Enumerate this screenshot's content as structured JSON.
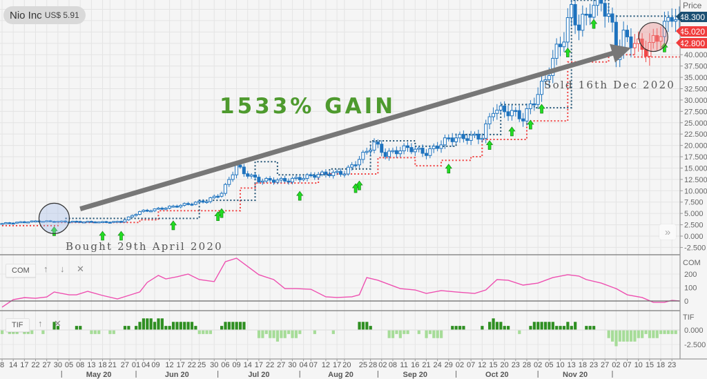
{
  "header": {
    "name": "Nio Inc",
    "price": "US$ 5.91"
  },
  "colors": {
    "candle": "#1e73be",
    "upper_stop": "#1b4f72",
    "lower_stop": "#f03c3c",
    "buy_arrow": "#22dd22",
    "com_line": "#ee4fb0",
    "tif_pos": "#2f8f22",
    "tif_neg": "#a6dc98",
    "gain_text": "#4e9a2e",
    "trend_arrow": "#777777"
  },
  "annotations": {
    "gain": "1533% GAIN",
    "bought": "Bought 29th April 2020",
    "sold": "Sold 16th Dec 2020"
  },
  "price_tags": [
    {
      "value": "48.300",
      "color": "#1b4f72"
    },
    {
      "value": "45.020",
      "color": "#f03c3c"
    },
    {
      "value": "42.800",
      "color": "#f03c3c"
    }
  ],
  "panels": {
    "com": {
      "label": "COM",
      "axis_title": "COM",
      "controls": {
        "up": "↑",
        "down": "↓",
        "close": "✕"
      }
    },
    "tif": {
      "label": "TIF",
      "axis_title": "TIF",
      "controls": {
        "up": "↑",
        "close": "✕"
      }
    }
  },
  "scroll_button": "»",
  "chart_data": {
    "type": "candlestick",
    "title": "Nio Inc",
    "ylabel": "Price",
    "ylim": [
      -2.5,
      52
    ],
    "y_ticks": [
      "-2.500",
      "0.000",
      "2.500",
      "5.000",
      "7.500",
      "10.000",
      "12.500",
      "15.000",
      "17.500",
      "20.000",
      "22.500",
      "25.000",
      "27.500",
      "30.000",
      "32.500",
      "35.000",
      "37.500",
      "40.000"
    ],
    "close_path": [
      [
        0,
        2.8
      ],
      [
        9,
        3.3
      ],
      [
        18,
        3.2
      ],
      [
        27,
        3.1
      ],
      [
        32,
        3.2
      ],
      [
        37,
        5.4
      ],
      [
        42,
        6.0
      ],
      [
        48,
        6.8
      ],
      [
        55,
        7.8
      ],
      [
        59,
        9.5
      ],
      [
        61,
        12.5
      ],
      [
        63,
        15.5
      ],
      [
        65,
        14
      ],
      [
        69,
        12.3
      ],
      [
        77,
        12.3
      ],
      [
        85,
        13.6
      ],
      [
        92,
        14.0
      ],
      [
        96,
        17
      ],
      [
        100,
        20.5
      ],
      [
        103,
        18
      ],
      [
        109,
        19.5
      ],
      [
        114,
        18.3
      ],
      [
        120,
        21.5
      ],
      [
        129,
        22
      ],
      [
        132,
        28
      ],
      [
        137,
        27.3
      ],
      [
        140,
        26
      ],
      [
        143,
        30
      ],
      [
        146,
        34.5
      ],
      [
        149,
        41
      ],
      [
        151,
        44
      ],
      [
        153,
        50
      ],
      [
        155,
        46
      ],
      [
        158,
        50
      ],
      [
        161,
        52
      ],
      [
        164,
        46
      ],
      [
        165,
        40
      ],
      [
        167,
        44
      ],
      [
        170,
        42.5
      ],
      [
        173,
        41
      ],
      [
        176,
        44
      ],
      [
        178,
        46
      ],
      [
        180,
        49
      ],
      [
        182,
        47
      ],
      [
        184,
        46
      ]
    ],
    "upper_stop": [
      [
        17,
        3.9
      ],
      [
        53,
        7.9
      ],
      [
        68,
        16.4
      ],
      [
        74,
        13.5
      ],
      [
        88,
        14.8
      ],
      [
        99,
        21
      ],
      [
        111,
        19.8
      ],
      [
        122,
        22.4
      ],
      [
        134,
        29
      ],
      [
        143,
        28.3
      ],
      [
        153,
        52
      ],
      [
        163,
        48.5
      ],
      [
        184,
        48.5
      ]
    ],
    "lower_stop": [
      [
        0,
        2.3
      ],
      [
        15,
        3
      ],
      [
        37,
        3.6
      ],
      [
        42,
        5.6
      ],
      [
        64,
        10.6
      ],
      [
        68,
        11.7
      ],
      [
        85,
        13.7
      ],
      [
        101,
        17.3
      ],
      [
        111,
        15.5
      ],
      [
        118,
        16.7
      ],
      [
        126,
        17.5
      ],
      [
        129,
        21.3
      ],
      [
        141,
        25.4
      ],
      [
        152,
        38.4
      ],
      [
        163,
        40
      ],
      [
        170,
        39.5
      ],
      [
        184,
        39.5
      ]
    ],
    "buy_signals": [
      [
        14,
        1.0
      ],
      [
        27,
        0.0
      ],
      [
        32,
        0.0
      ],
      [
        46,
        2.3
      ],
      [
        58,
        4.3
      ],
      [
        59,
        5.0
      ],
      [
        80,
        8.8
      ],
      [
        95,
        10.5
      ],
      [
        96,
        11.1
      ],
      [
        120,
        14.8
      ],
      [
        131,
        20
      ],
      [
        137,
        23
      ],
      [
        142,
        24.5
      ],
      [
        145,
        28
      ],
      [
        152,
        40.4
      ],
      [
        159,
        46.7
      ],
      [
        178,
        41.5
      ]
    ],
    "trend_arrow": {
      "from": [
        21,
        6.0
      ],
      "to": [
        169,
        41.5
      ]
    },
    "highlight_bought": [
      14,
      3.9
    ],
    "highlight_sold": [
      175,
      43.9
    ],
    "com": {
      "y_ticks": [
        "200",
        "100",
        "0"
      ],
      "ylim": [
        -60,
        330
      ],
      "values": [
        [
          0,
          -46
        ],
        [
          3,
          10
        ],
        [
          6,
          25
        ],
        [
          9,
          20
        ],
        [
          12,
          30
        ],
        [
          14,
          67
        ],
        [
          18,
          46
        ],
        [
          20,
          46
        ],
        [
          23,
          72
        ],
        [
          27,
          41
        ],
        [
          31,
          15
        ],
        [
          34,
          41
        ],
        [
          37,
          67
        ],
        [
          39,
          138
        ],
        [
          42,
          190
        ],
        [
          44,
          164
        ],
        [
          47,
          180
        ],
        [
          50,
          200
        ],
        [
          53,
          159
        ],
        [
          57,
          144
        ],
        [
          60,
          292
        ],
        [
          63,
          318
        ],
        [
          69,
          195
        ],
        [
          73,
          159
        ],
        [
          76,
          92
        ],
        [
          79,
          92
        ],
        [
          83,
          87
        ],
        [
          87,
          31
        ],
        [
          90,
          26
        ],
        [
          94,
          31
        ],
        [
          96,
          46
        ],
        [
          98,
          174
        ],
        [
          101,
          154
        ],
        [
          107,
          92
        ],
        [
          111,
          82
        ],
        [
          114,
          56
        ],
        [
          118,
          77
        ],
        [
          122,
          67
        ],
        [
          127,
          56
        ],
        [
          130,
          82
        ],
        [
          133,
          159
        ],
        [
          136,
          154
        ],
        [
          140,
          118
        ],
        [
          144,
          133
        ],
        [
          148,
          174
        ],
        [
          152,
          195
        ],
        [
          155,
          185
        ],
        [
          157,
          159
        ],
        [
          161,
          133
        ],
        [
          165,
          92
        ],
        [
          168,
          46
        ],
        [
          172,
          26
        ],
        [
          175,
          -10
        ],
        [
          178,
          -10
        ],
        [
          180,
          5
        ],
        [
          182,
          0
        ]
      ]
    },
    "tif": {
      "y_ticks": [
        "0.000",
        "-2.500"
      ],
      "values": [
        [
          0,
          -0.7
        ],
        [
          2,
          -0.7
        ],
        [
          3,
          -0.7
        ],
        [
          4,
          -0.7
        ],
        [
          6,
          -0.7
        ],
        [
          7,
          -0.7
        ],
        [
          8,
          -0.7
        ],
        [
          11,
          -0.7
        ],
        [
          14,
          1.4
        ],
        [
          15,
          0.7
        ],
        [
          20,
          0.7
        ],
        [
          21,
          0.7
        ],
        [
          24,
          -0.7
        ],
        [
          25,
          -0.7
        ],
        [
          26,
          -0.7
        ],
        [
          29,
          -0.7
        ],
        [
          30,
          -0.7
        ],
        [
          33,
          0.7
        ],
        [
          34,
          0.7
        ],
        [
          36,
          0.7
        ],
        [
          37,
          1.4
        ],
        [
          38,
          2.0
        ],
        [
          39,
          2.0
        ],
        [
          40,
          2.0
        ],
        [
          41,
          1.4
        ],
        [
          42,
          2.0
        ],
        [
          43,
          2.0
        ],
        [
          44,
          0.7
        ],
        [
          45,
          0.7
        ],
        [
          46,
          1.4
        ],
        [
          47,
          1.4
        ],
        [
          48,
          1.4
        ],
        [
          49,
          1.4
        ],
        [
          50,
          1.4
        ],
        [
          51,
          1.4
        ],
        [
          52,
          0.7
        ],
        [
          53,
          -0.7
        ],
        [
          54,
          -0.7
        ],
        [
          55,
          -0.7
        ],
        [
          56,
          -0.7
        ],
        [
          59,
          0.7
        ],
        [
          60,
          1.4
        ],
        [
          61,
          1.4
        ],
        [
          62,
          1.4
        ],
        [
          63,
          1.4
        ],
        [
          64,
          1.4
        ],
        [
          65,
          1.4
        ],
        [
          69,
          -1.4
        ],
        [
          70,
          -1.4
        ],
        [
          71,
          -0.7
        ],
        [
          72,
          -1.4
        ],
        [
          73,
          -1.4
        ],
        [
          74,
          -2.0
        ],
        [
          75,
          -1.4
        ],
        [
          76,
          -1.4
        ],
        [
          77,
          -0.7
        ],
        [
          78,
          -1.4
        ],
        [
          79,
          -1.4
        ],
        [
          80,
          -0.7
        ],
        [
          84,
          -0.7
        ],
        [
          89,
          -0.7
        ],
        [
          96,
          1.4
        ],
        [
          97,
          1.4
        ],
        [
          98,
          1.4
        ],
        [
          99,
          0.7
        ],
        [
          104,
          -1.4
        ],
        [
          105,
          -1.4
        ],
        [
          106,
          -0.7
        ],
        [
          107,
          -1.4
        ],
        [
          108,
          -0.7
        ],
        [
          109,
          -0.7
        ],
        [
          112,
          -0.7
        ],
        [
          114,
          -1.4
        ],
        [
          115,
          -0.7
        ],
        [
          116,
          -1.4
        ],
        [
          117,
          -1.4
        ],
        [
          118,
          -1.4
        ],
        [
          121,
          0.7
        ],
        [
          122,
          0.7
        ],
        [
          123,
          0.7
        ],
        [
          124,
          0.7
        ],
        [
          129,
          0.7
        ],
        [
          131,
          1.4
        ],
        [
          132,
          2.0
        ],
        [
          133,
          1.4
        ],
        [
          134,
          1.4
        ],
        [
          135,
          0.7
        ],
        [
          136,
          0.7
        ],
        [
          139,
          -0.7
        ],
        [
          142,
          0.7
        ],
        [
          143,
          1.4
        ],
        [
          144,
          1.4
        ],
        [
          145,
          1.4
        ],
        [
          146,
          1.4
        ],
        [
          147,
          1.4
        ],
        [
          148,
          1.4
        ],
        [
          149,
          0.7
        ],
        [
          150,
          0.7
        ],
        [
          151,
          0.7
        ],
        [
          152,
          1.4
        ],
        [
          153,
          0.7
        ],
        [
          154,
          1.4
        ],
        [
          157,
          0.7
        ],
        [
          158,
          0.7
        ],
        [
          159,
          0.7
        ],
        [
          163,
          -1.4
        ],
        [
          164,
          -2.0
        ],
        [
          165,
          -2.8
        ],
        [
          166,
          -2.0
        ],
        [
          167,
          -2.0
        ],
        [
          168,
          -2.0
        ],
        [
          169,
          -2.0
        ],
        [
          170,
          -2.0
        ],
        [
          171,
          -1.4
        ],
        [
          172,
          -1.4
        ],
        [
          173,
          -0.7
        ],
        [
          174,
          -1.4
        ],
        [
          175,
          -1.4
        ],
        [
          176,
          -1.4
        ],
        [
          177,
          -0.7
        ],
        [
          178,
          -0.7
        ],
        [
          179,
          -0.7
        ],
        [
          180,
          -0.7
        ],
        [
          181,
          -0.7
        ]
      ]
    },
    "x_ticks": [
      [
        "8",
        0
      ],
      [
        "14",
        3
      ],
      [
        "17",
        6
      ],
      [
        "22",
        9
      ],
      [
        "27",
        12
      ],
      [
        "30",
        15
      ],
      [
        "05",
        18
      ],
      [
        "08",
        21
      ],
      [
        "13",
        24
      ],
      [
        "18",
        27
      ],
      [
        "21",
        29
      ],
      [
        "27",
        33
      ],
      [
        "01",
        36
      ],
      [
        "04",
        38
      ],
      [
        "09",
        41
      ],
      [
        "12",
        45
      ],
      [
        "17",
        48
      ],
      [
        "22",
        51
      ],
      [
        "25",
        53
      ],
      [
        "30",
        57
      ],
      [
        "06",
        60
      ],
      [
        "09",
        63
      ],
      [
        "14",
        66
      ],
      [
        "17",
        69
      ],
      [
        "22",
        72
      ],
      [
        "27",
        75
      ],
      [
        "30",
        78
      ],
      [
        "04",
        81
      ],
      [
        "07",
        83
      ],
      [
        "12",
        87
      ],
      [
        "17",
        90
      ],
      [
        "20",
        92
      ],
      [
        "25",
        97
      ],
      [
        "28",
        99
      ],
      [
        "02",
        102
      ],
      [
        "08",
        105
      ],
      [
        "11",
        108
      ],
      [
        "16",
        111
      ],
      [
        "21",
        114
      ],
      [
        "24",
        117
      ],
      [
        "29",
        120
      ],
      [
        "02",
        123
      ],
      [
        "07",
        126
      ],
      [
        "12",
        129
      ],
      [
        "15",
        132
      ],
      [
        "20",
        135
      ],
      [
        "23",
        138
      ],
      [
        "28",
        141
      ],
      [
        "02",
        144
      ],
      [
        "05",
        147
      ],
      [
        "10",
        150
      ],
      [
        "13",
        153
      ],
      [
        "18",
        156
      ],
      [
        "23",
        159
      ],
      [
        "27",
        162
      ],
      [
        "02",
        165
      ],
      [
        "07",
        168
      ],
      [
        "10",
        171
      ],
      [
        "15",
        174
      ],
      [
        "18",
        177
      ],
      [
        "23",
        180
      ]
    ],
    "months": [
      [
        "May 20",
        26
      ],
      [
        "Jun 20",
        47
      ],
      [
        "Jul 20",
        69
      ],
      [
        "Aug 20",
        91
      ],
      [
        "Sep 20",
        111
      ],
      [
        "Oct 20",
        133
      ],
      [
        "Nov 20",
        154
      ]
    ],
    "month_separators": [
      16,
      36,
      58,
      80,
      101,
      122,
      144,
      164
    ]
  }
}
